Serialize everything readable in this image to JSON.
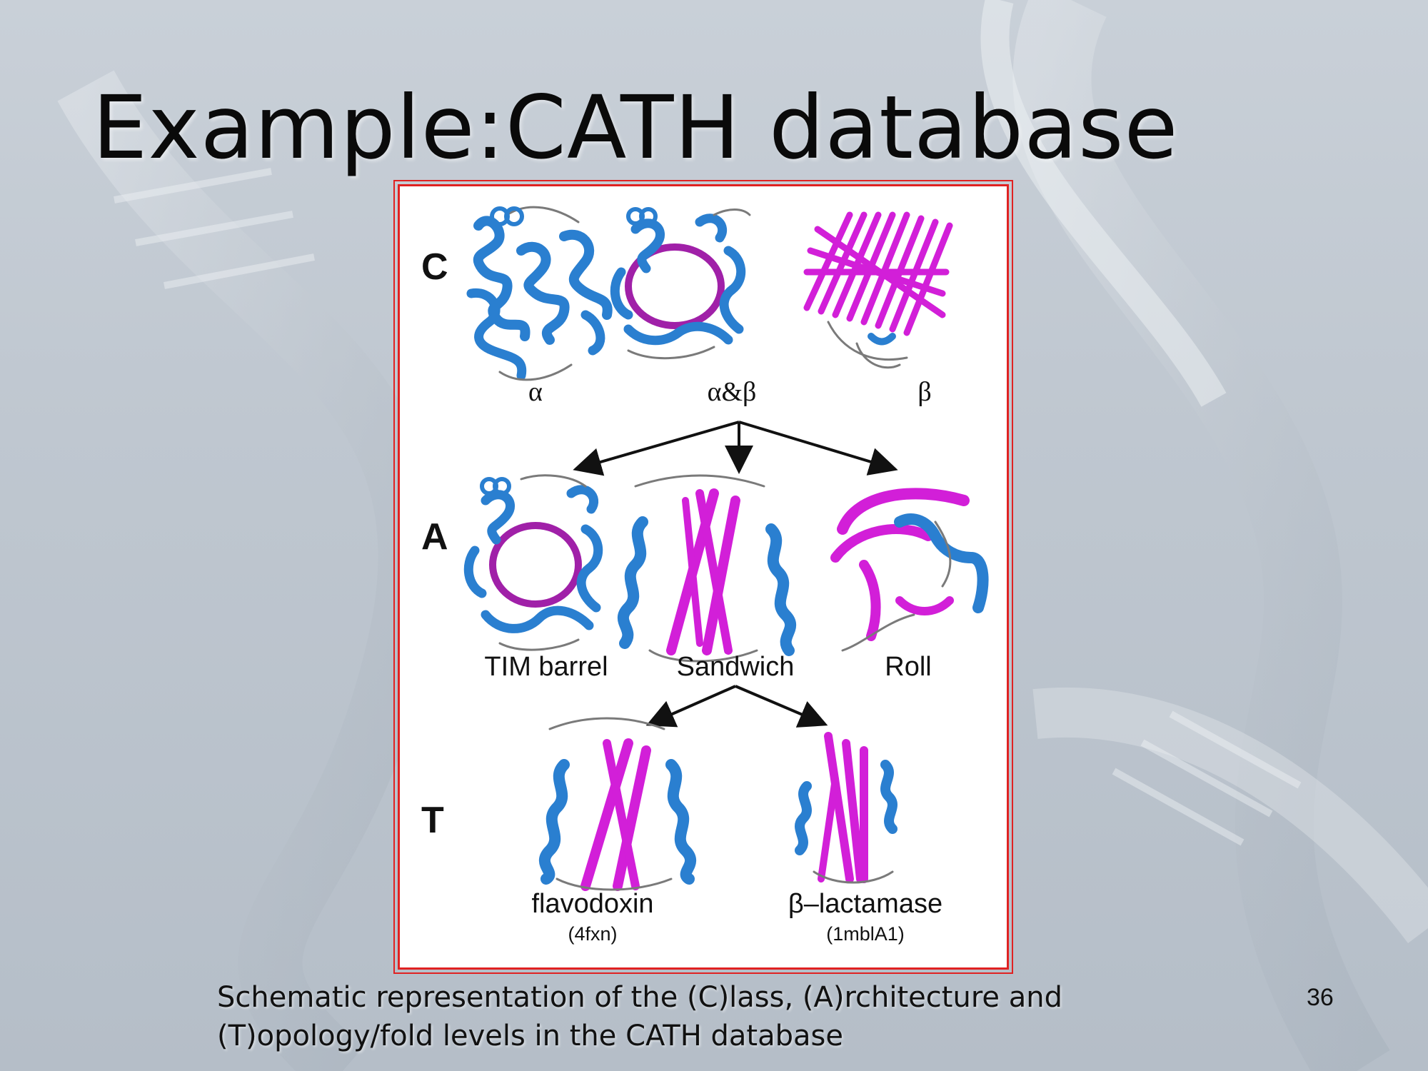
{
  "slide": {
    "title": "Example:CATH database",
    "caption_line1": "Schematic representation of the (C)lass, (A)rchitecture and",
    "caption_line2": "(T)opology/fold levels in the CATH database",
    "page_number": "36"
  },
  "figure": {
    "levels": {
      "c": "C",
      "a": "A",
      "t": "T"
    },
    "class_labels": [
      "α",
      "α&β",
      "β"
    ],
    "architecture_labels": [
      "TIM barrel",
      "Sandwich",
      "Roll"
    ],
    "topology_labels": [
      {
        "name": "flavodoxin",
        "id": "(4fxn)"
      },
      {
        "name": "β–lactamase",
        "id": "(1mblA1)"
      }
    ],
    "colors": {
      "helix": "#2a7fd0",
      "strand": "#d21fd8",
      "coil": "#7a7a7a",
      "frame": "#e02222"
    }
  }
}
